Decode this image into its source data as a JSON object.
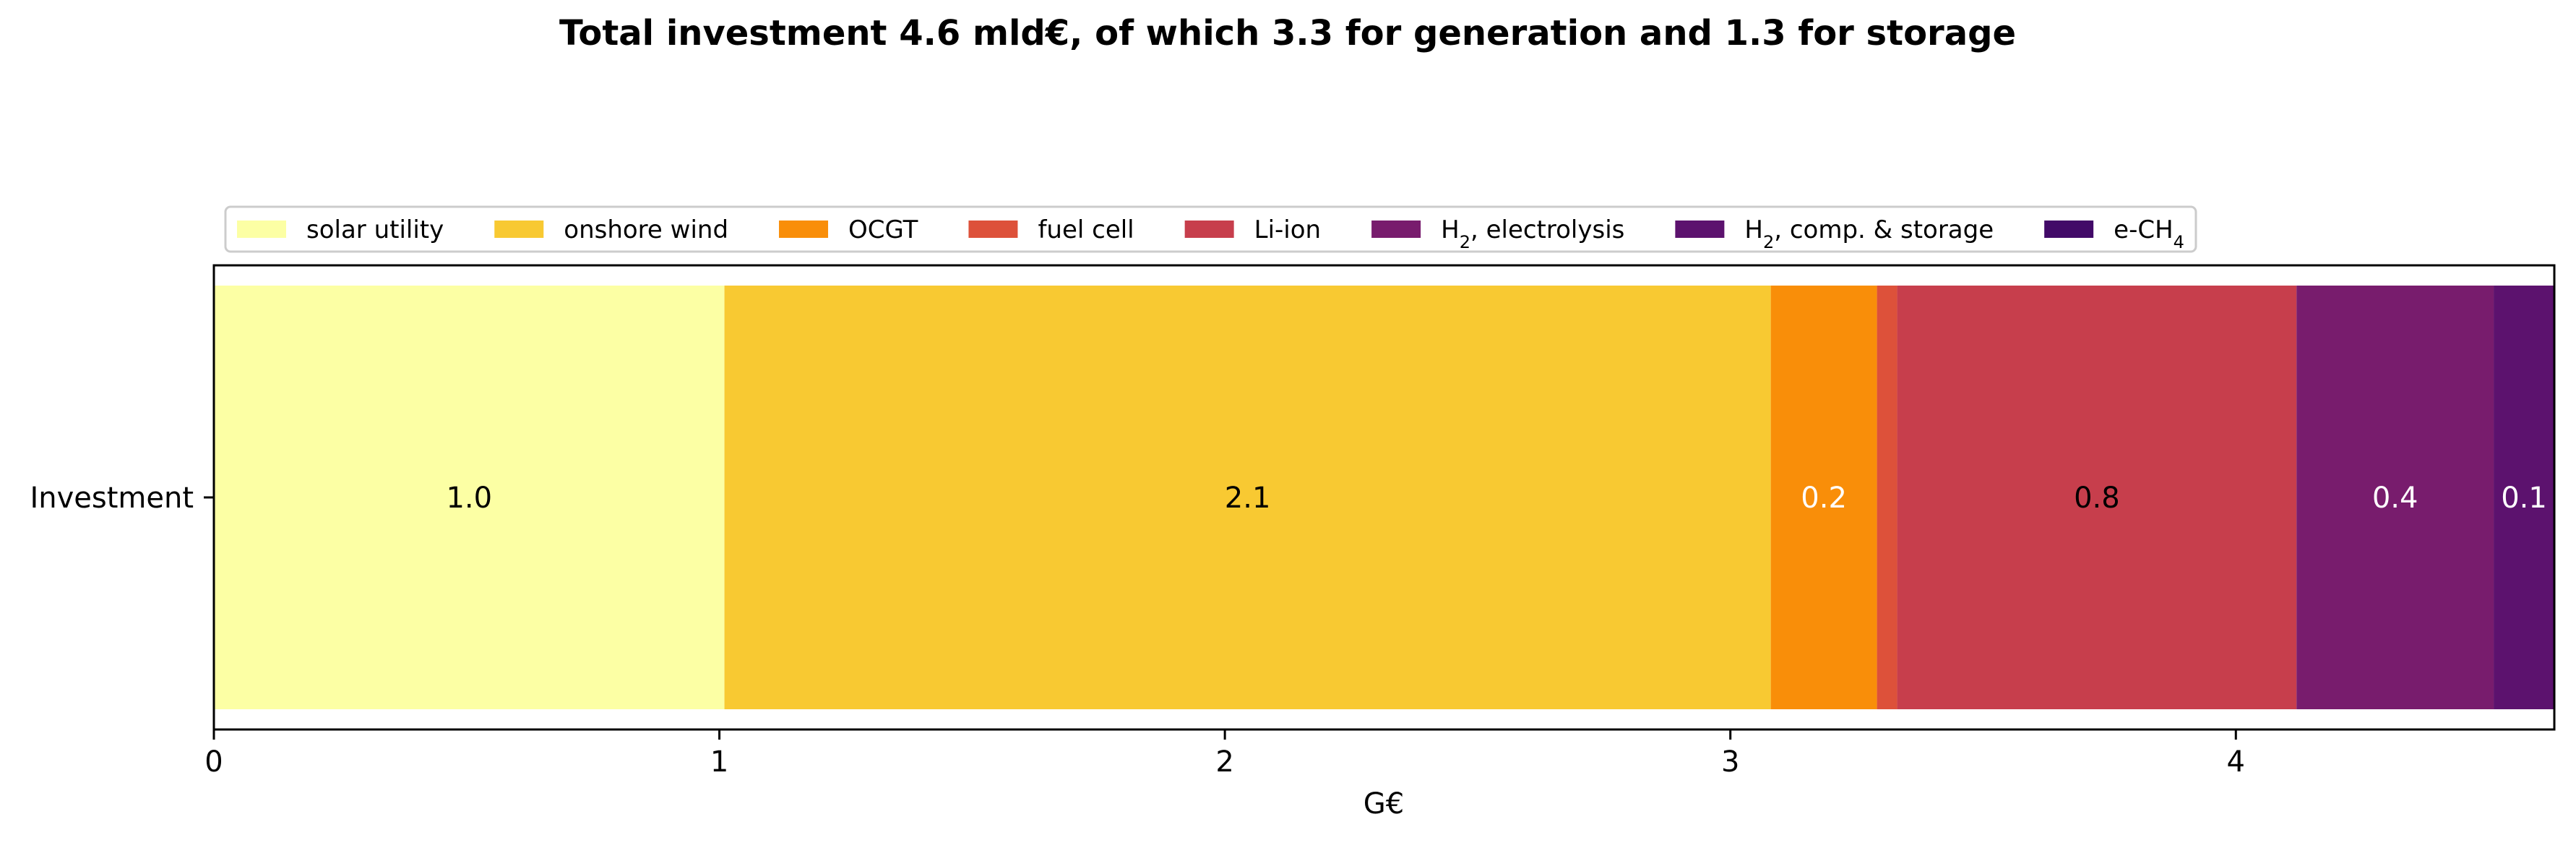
{
  "chart_data": {
    "type": "bar",
    "orientation": "horizontal",
    "stacked": true,
    "title": "Total investment 4.6 mld€, of which 3.3 for generation and 1.3 for storage",
    "xlabel": "G€",
    "ylabel": "",
    "categories": [
      "Investment"
    ],
    "xlim": [
      0,
      4.63
    ],
    "xticks": [
      0,
      1,
      2,
      3,
      4
    ],
    "grid": false,
    "legend_position": "top",
    "series": [
      {
        "name": "solar utility",
        "value": 1.01,
        "label": "1.0",
        "color": "#fcffa4",
        "label_color": "#000000"
      },
      {
        "name": "onshore wind",
        "value": 2.07,
        "label": "2.1",
        "color": "#f8c932",
        "label_color": "#000000"
      },
      {
        "name": "OCGT",
        "value": 0.21,
        "label": "0.2",
        "color": "#f98e09",
        "label_color": "#ffffff"
      },
      {
        "name": "fuel cell",
        "value": 0.04,
        "label": "",
        "color": "#dd513a",
        "label_color": "#ffffff"
      },
      {
        "name": "Li-ion",
        "value": 0.79,
        "label": "0.8",
        "color": "#c73e4c",
        "label_color": "#000000"
      },
      {
        "name": "H₂, electrolysis",
        "value": 0.39,
        "label": "0.4",
        "color": "#781c6d",
        "label_color": "#ffffff"
      },
      {
        "name": "H₂, comp. & storage",
        "value": 0.12,
        "label": "0.1",
        "color": "#5c126e",
        "label_color": "#ffffff"
      },
      {
        "name": "e-CH₄",
        "value": 0.0,
        "label": "",
        "color": "#420a68",
        "label_color": "#ffffff"
      }
    ]
  }
}
